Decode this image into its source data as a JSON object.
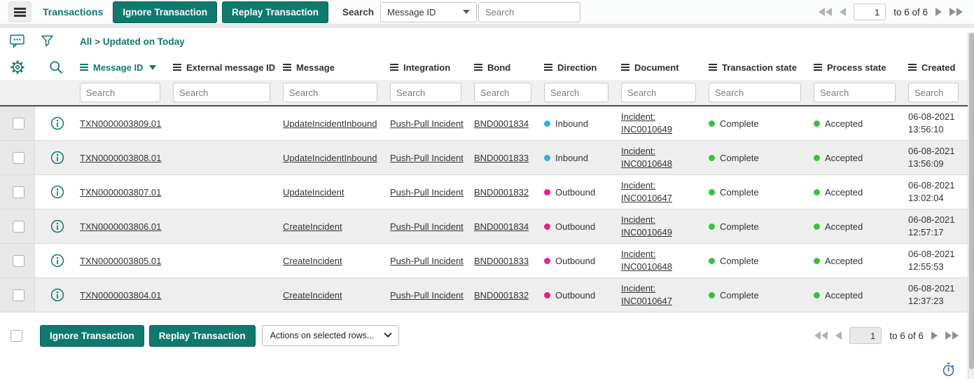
{
  "theme": {
    "teal": "#0e7a6e",
    "link": "#333333",
    "inbound": "#29b2e8",
    "outbound": "#ee1d8c",
    "success": "#35c33b",
    "iconblue": "#2b6fb3"
  },
  "topbar": {
    "title": "Transactions",
    "ignore_button": "Ignore Transaction",
    "replay_button": "Replay Transaction",
    "search_label": "Search",
    "search_field": "Message ID",
    "search_placeholder": "Search"
  },
  "pagination": {
    "page": "1",
    "range": "to 6 of 6"
  },
  "breadcrumb": {
    "all": "All",
    "separator": ">",
    "filter": "Updated on Today"
  },
  "table": {
    "search_placeholder": "Search",
    "columns": [
      {
        "key": "message_id",
        "label": "Message ID",
        "sorted": "desc"
      },
      {
        "key": "external_message_id",
        "label": "External message ID"
      },
      {
        "key": "message",
        "label": "Message"
      },
      {
        "key": "integration",
        "label": "Integration"
      },
      {
        "key": "bond",
        "label": "Bond"
      },
      {
        "key": "direction",
        "label": "Direction"
      },
      {
        "key": "document",
        "label": "Document"
      },
      {
        "key": "transaction_state",
        "label": "Transaction state"
      },
      {
        "key": "process_state",
        "label": "Process state"
      },
      {
        "key": "created",
        "label": "Created"
      }
    ],
    "rows": [
      {
        "message_id": "TXN0000003809.01",
        "external_message_id": "",
        "message": "UpdateIncidentInbound",
        "integration": "Push-Pull Incident",
        "bond": "BND0001834",
        "direction": "Inbound",
        "document": [
          "Incident:",
          "INC0010649"
        ],
        "transaction_state": "Complete",
        "process_state": "Accepted",
        "created": [
          "06-08-2021",
          "13:56:10"
        ]
      },
      {
        "message_id": "TXN0000003808.01",
        "external_message_id": "",
        "message": "UpdateIncidentInbound",
        "integration": "Push-Pull Incident",
        "bond": "BND0001833",
        "direction": "Inbound",
        "document": [
          "Incident:",
          "INC0010648"
        ],
        "transaction_state": "Complete",
        "process_state": "Accepted",
        "created": [
          "06-08-2021",
          "13:56:09"
        ]
      },
      {
        "message_id": "TXN0000003807.01",
        "external_message_id": "",
        "message": "UpdateIncident",
        "integration": "Push-Pull Incident",
        "bond": "BND0001832",
        "direction": "Outbound",
        "document": [
          "Incident:",
          "INC0010647"
        ],
        "transaction_state": "Complete",
        "process_state": "Accepted",
        "created": [
          "06-08-2021",
          "13:02:04"
        ]
      },
      {
        "message_id": "TXN0000003806.01",
        "external_message_id": "",
        "message": "CreateIncident",
        "integration": "Push-Pull Incident",
        "bond": "BND0001834",
        "direction": "Outbound",
        "document": [
          "Incident:",
          "INC0010649"
        ],
        "transaction_state": "Complete",
        "process_state": "Accepted",
        "created": [
          "06-08-2021",
          "12:57:17"
        ]
      },
      {
        "message_id": "TXN0000003805.01",
        "external_message_id": "",
        "message": "CreateIncident",
        "integration": "Push-Pull Incident",
        "bond": "BND0001833",
        "direction": "Outbound",
        "document": [
          "Incident:",
          "INC0010648"
        ],
        "transaction_state": "Complete",
        "process_state": "Accepted",
        "created": [
          "06-08-2021",
          "12:55:53"
        ]
      },
      {
        "message_id": "TXN0000003804.01",
        "external_message_id": "",
        "message": "CreateIncident",
        "integration": "Push-Pull Incident",
        "bond": "BND0001832",
        "direction": "Outbound",
        "document": [
          "Incident:",
          "INC0010647"
        ],
        "transaction_state": "Complete",
        "process_state": "Accepted",
        "created": [
          "06-08-2021",
          "12:37:23"
        ]
      }
    ]
  },
  "footer": {
    "ignore_button": "Ignore Transaction",
    "replay_button": "Replay Transaction",
    "actions_placeholder": "Actions on selected rows..."
  },
  "icons": [
    "hamburger-icon",
    "chevron-down-icon",
    "first-page-icon",
    "previous-page-icon",
    "next-page-icon",
    "last-page-icon",
    "chat-bubble-icon",
    "funnel-icon",
    "gear-icon",
    "search-icon",
    "column-menu-icon",
    "sort-desc-icon",
    "info-icon",
    "stopwatch-icon"
  ]
}
